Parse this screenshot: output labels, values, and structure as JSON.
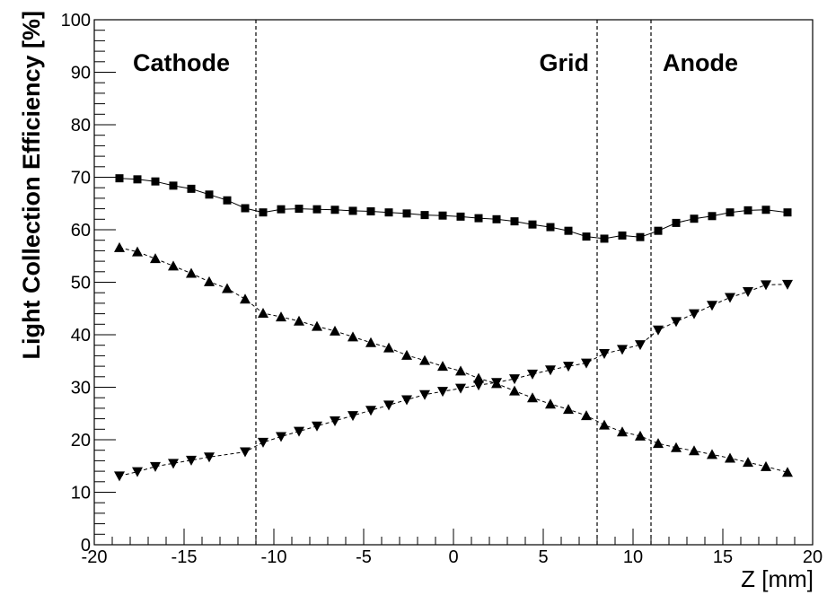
{
  "chart_data": {
    "type": "scatter",
    "xlabel": "Z [mm]",
    "ylabel": "Light Collection Efficiency [%]",
    "xlim": [
      -20,
      20
    ],
    "ylim": [
      0,
      100
    ],
    "x_ticks": [
      -20,
      -15,
      -10,
      -5,
      0,
      5,
      10,
      15,
      20
    ],
    "y_ticks": [
      0,
      10,
      20,
      30,
      40,
      50,
      60,
      70,
      80,
      90,
      100
    ],
    "grid": false,
    "legend": "none",
    "boundaries": [
      {
        "name": "Cathode",
        "x": -11
      },
      {
        "name": "Grid",
        "x": 8
      },
      {
        "name": "Anode",
        "x": 11
      }
    ],
    "region_labels": [
      "Cathode",
      "Grid",
      "Anode"
    ],
    "series": [
      {
        "marker": "square",
        "color": "#000000",
        "points": [
          [
            -18.6,
            69.8
          ],
          [
            -17.6,
            69.6
          ],
          [
            -16.6,
            69.2
          ],
          [
            -15.6,
            68.4
          ],
          [
            -14.6,
            67.8
          ],
          [
            -13.6,
            66.7
          ],
          [
            -12.6,
            65.6
          ],
          [
            -11.6,
            64.1
          ],
          [
            -10.6,
            63.3
          ],
          [
            -9.6,
            63.9
          ],
          [
            -8.6,
            64.0
          ],
          [
            -7.6,
            63.9
          ],
          [
            -6.6,
            63.8
          ],
          [
            -5.6,
            63.6
          ],
          [
            -4.6,
            63.5
          ],
          [
            -3.6,
            63.3
          ],
          [
            -2.6,
            63.1
          ],
          [
            -1.6,
            62.8
          ],
          [
            -0.6,
            62.7
          ],
          [
            0.4,
            62.5
          ],
          [
            1.4,
            62.2
          ],
          [
            2.4,
            62.0
          ],
          [
            3.4,
            61.6
          ],
          [
            4.4,
            61.0
          ],
          [
            5.4,
            60.5
          ],
          [
            6.4,
            59.8
          ],
          [
            7.4,
            58.7
          ],
          [
            8.4,
            58.3
          ],
          [
            9.4,
            58.9
          ],
          [
            10.4,
            58.6
          ],
          [
            11.4,
            59.8
          ],
          [
            12.4,
            61.3
          ],
          [
            13.4,
            62.1
          ],
          [
            14.4,
            62.6
          ],
          [
            15.4,
            63.3
          ],
          [
            16.4,
            63.7
          ],
          [
            17.4,
            63.8
          ],
          [
            18.6,
            63.3
          ]
        ]
      },
      {
        "marker": "triangle-up",
        "color": "#000000",
        "points": [
          [
            -18.6,
            56.6
          ],
          [
            -17.6,
            55.8
          ],
          [
            -16.6,
            54.5
          ],
          [
            -15.6,
            53.1
          ],
          [
            -14.6,
            51.7
          ],
          [
            -13.6,
            50.1
          ],
          [
            -12.6,
            48.8
          ],
          [
            -11.6,
            46.8
          ],
          [
            -10.6,
            44.1
          ],
          [
            -9.6,
            43.4
          ],
          [
            -8.6,
            42.6
          ],
          [
            -7.6,
            41.6
          ],
          [
            -6.6,
            40.7
          ],
          [
            -5.6,
            39.6
          ],
          [
            -4.6,
            38.5
          ],
          [
            -3.6,
            37.5
          ],
          [
            -2.6,
            36.1
          ],
          [
            -1.6,
            35.1
          ],
          [
            -0.6,
            34.0
          ],
          [
            0.4,
            33.1
          ],
          [
            1.4,
            31.7
          ],
          [
            2.4,
            30.7
          ],
          [
            3.4,
            29.3
          ],
          [
            4.4,
            28.0
          ],
          [
            5.4,
            26.8
          ],
          [
            6.4,
            25.8
          ],
          [
            7.4,
            24.6
          ],
          [
            8.4,
            22.8
          ],
          [
            9.4,
            21.5
          ],
          [
            10.4,
            20.7
          ],
          [
            11.4,
            19.3
          ],
          [
            12.4,
            18.5
          ],
          [
            13.4,
            17.9
          ],
          [
            14.4,
            17.2
          ],
          [
            15.4,
            16.5
          ],
          [
            16.4,
            15.7
          ],
          [
            17.4,
            14.9
          ],
          [
            18.6,
            13.8
          ]
        ]
      },
      {
        "marker": "triangle-down",
        "color": "#000000",
        "points": [
          [
            -18.6,
            13.1
          ],
          [
            -17.6,
            13.9
          ],
          [
            -16.6,
            14.9
          ],
          [
            -15.6,
            15.5
          ],
          [
            -14.6,
            16.1
          ],
          [
            -13.6,
            16.7
          ],
          [
            -11.6,
            17.7
          ],
          [
            -10.6,
            19.5
          ],
          [
            -9.6,
            20.6
          ],
          [
            -8.6,
            21.6
          ],
          [
            -7.6,
            22.6
          ],
          [
            -6.6,
            23.6
          ],
          [
            -5.6,
            24.6
          ],
          [
            -4.6,
            25.6
          ],
          [
            -3.6,
            26.6
          ],
          [
            -2.6,
            27.6
          ],
          [
            -1.6,
            28.6
          ],
          [
            -0.6,
            29.2
          ],
          [
            0.4,
            29.8
          ],
          [
            1.4,
            30.4
          ],
          [
            2.4,
            30.9
          ],
          [
            3.4,
            31.6
          ],
          [
            4.4,
            32.5
          ],
          [
            5.4,
            33.3
          ],
          [
            6.4,
            34.0
          ],
          [
            7.4,
            34.6
          ],
          [
            8.4,
            36.4
          ],
          [
            9.4,
            37.2
          ],
          [
            10.4,
            38.1
          ],
          [
            11.4,
            40.9
          ],
          [
            12.4,
            42.5
          ],
          [
            13.4,
            44.0
          ],
          [
            14.4,
            45.6
          ],
          [
            15.4,
            47.1
          ],
          [
            16.4,
            48.2
          ],
          [
            17.4,
            49.5
          ],
          [
            18.6,
            49.6
          ]
        ]
      }
    ]
  }
}
